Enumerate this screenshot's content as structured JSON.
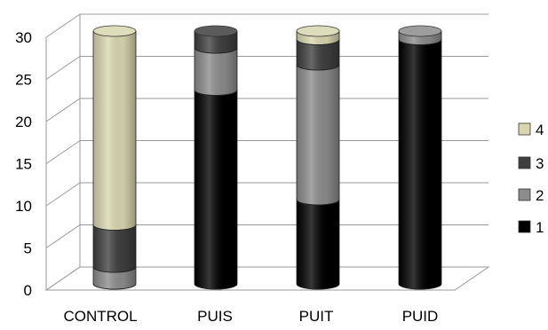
{
  "chart_data": {
    "type": "bar",
    "stacked": true,
    "style": "3d-cylinder",
    "title": "",
    "xlabel": "",
    "ylabel": "",
    "ylim": [
      0,
      30
    ],
    "yticks": [
      "0",
      "5",
      "10",
      "15",
      "20",
      "25",
      "30"
    ],
    "grid": true,
    "legend_position": "right",
    "categories": [
      "CONTROL",
      "PUIS",
      "PUIT",
      "PUID"
    ],
    "series": [
      {
        "name": "1",
        "color": "#000000",
        "values": [
          0,
          23,
          10,
          29
        ]
      },
      {
        "name": "2",
        "color": "#8c8c8c",
        "values": [
          2,
          5,
          16,
          1
        ]
      },
      {
        "name": "3",
        "color": "#3f3f3f",
        "values": [
          5,
          2,
          3,
          0
        ]
      },
      {
        "name": "4",
        "color": "#d9d7b0",
        "values": [
          23,
          0,
          1,
          0
        ]
      }
    ]
  }
}
